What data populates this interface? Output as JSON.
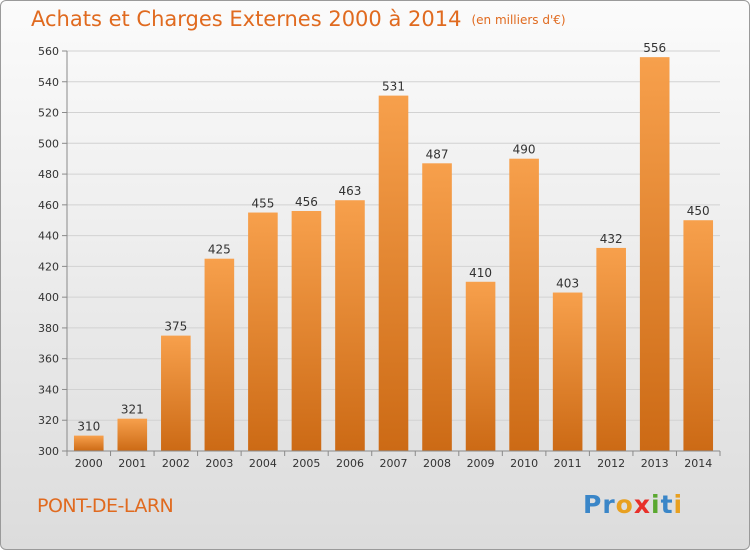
{
  "header": {
    "title": "Achats et Charges Externes 2000 à 2014",
    "unit": "(en milliers d'€)"
  },
  "footer": {
    "place": "PONT-DE-LARN",
    "brand_letters": [
      "P",
      "r",
      "o",
      "x",
      "i",
      "t",
      "i"
    ],
    "brand_colors": [
      "#3a86c8",
      "#3a86c8",
      "#e8a020",
      "#e8302a",
      "#5aa830",
      "#3a86c8",
      "#e8a020"
    ]
  },
  "colors": {
    "bar_top": "#f7a04c",
    "bar_bottom": "#cc6a15",
    "text": "#e06a1f",
    "grid": "#d2d2d2",
    "axis": "#8a8a8a",
    "label": "#333333"
  },
  "chart_data": {
    "type": "bar",
    "categories": [
      "2000",
      "2001",
      "2002",
      "2003",
      "2004",
      "2005",
      "2006",
      "2007",
      "2008",
      "2009",
      "2010",
      "2011",
      "2012",
      "2013",
      "2014"
    ],
    "values": [
      310,
      321,
      375,
      425,
      455,
      456,
      463,
      531,
      487,
      410,
      490,
      403,
      432,
      556,
      450
    ],
    "ylim": [
      300,
      560
    ],
    "yticks": [
      300,
      320,
      340,
      360,
      380,
      400,
      420,
      440,
      460,
      480,
      500,
      520,
      540,
      560
    ],
    "grid": true,
    "legend": "none"
  }
}
